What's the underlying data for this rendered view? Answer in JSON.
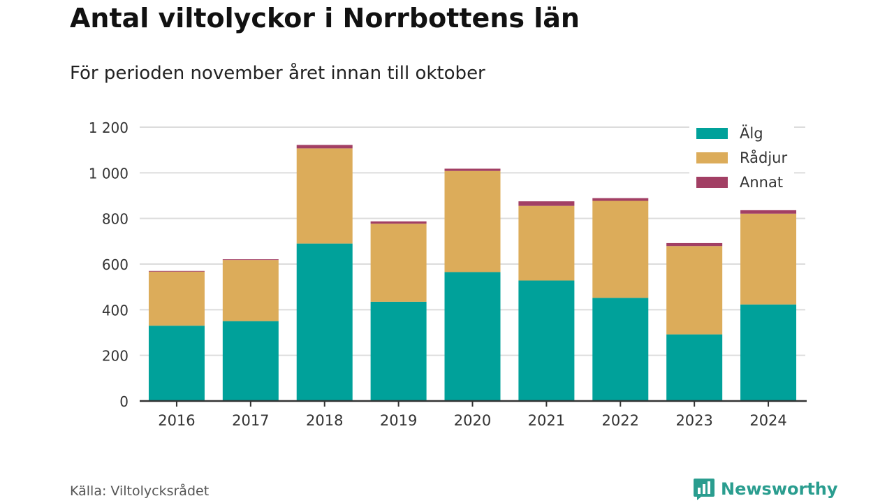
{
  "header": {
    "title": "Antal viltolyckor i Norrbottens län",
    "subtitle": "För perioden november året innan till oktober"
  },
  "footer": {
    "source": "Källa: Viltolycksrådet",
    "brand": "Newsworthy"
  },
  "colors": {
    "alg": "#00a19a",
    "radjur": "#dcac5a",
    "annat": "#a23f64",
    "brand": "#2a9d8f"
  },
  "chart_data": {
    "type": "bar",
    "stacked": true,
    "categories": [
      "2016",
      "2017",
      "2018",
      "2019",
      "2020",
      "2021",
      "2022",
      "2023",
      "2024"
    ],
    "series": [
      {
        "name": "Älg",
        "values": [
          330,
          350,
          690,
          435,
          565,
          528,
          452,
          292,
          423
        ]
      },
      {
        "name": "Rådjur",
        "values": [
          237,
          268,
          417,
          342,
          443,
          327,
          425,
          387,
          398
        ]
      },
      {
        "name": "Annat",
        "values": [
          3,
          3,
          15,
          10,
          10,
          20,
          12,
          13,
          15
        ]
      }
    ],
    "ylim": [
      0,
      1200
    ],
    "yticks": [
      0,
      200,
      400,
      600,
      800,
      1000,
      1200
    ],
    "ytick_labels": [
      "0",
      "200",
      "400",
      "600",
      "800",
      "1 000",
      "1 200"
    ],
    "grid": true,
    "legend": "top-right",
    "xlabel": "",
    "ylabel": ""
  }
}
